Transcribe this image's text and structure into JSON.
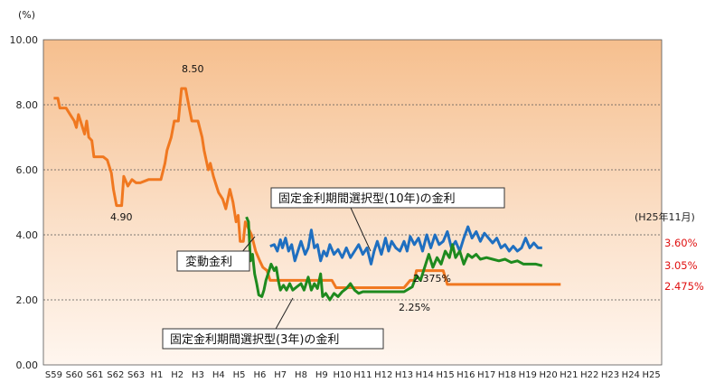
{
  "chart_data": {
    "type": "line",
    "y_unit": "(%)",
    "ylim": [
      0,
      10
    ],
    "y_ticks": [
      "0.00",
      "2.00",
      "4.00",
      "6.00",
      "8.00",
      "10.00"
    ],
    "categories": [
      "S59",
      "S60",
      "S61",
      "S62",
      "S63",
      "H1",
      "H2",
      "H3",
      "H4",
      "H5",
      "H6",
      "H7",
      "H8",
      "H9",
      "H10",
      "H11",
      "H12",
      "H13",
      "H14",
      "H15",
      "H16",
      "H17",
      "H18",
      "H19",
      "H20",
      "H21",
      "H22",
      "H23",
      "H24",
      "H25"
    ],
    "grid": true,
    "series": [
      {
        "name": "変動金利",
        "color": "#f07820",
        "points": [
          [
            0,
            8.2
          ],
          [
            0.2,
            8.2
          ],
          [
            0.3,
            7.9
          ],
          [
            0.6,
            7.9
          ],
          [
            0.8,
            7.7
          ],
          [
            1.0,
            7.5
          ],
          [
            1.1,
            7.3
          ],
          [
            1.2,
            7.7
          ],
          [
            1.35,
            7.4
          ],
          [
            1.5,
            7.1
          ],
          [
            1.6,
            7.5
          ],
          [
            1.7,
            7.0
          ],
          [
            1.85,
            6.9
          ],
          [
            1.95,
            6.4
          ],
          [
            2.4,
            6.4
          ],
          [
            2.6,
            6.3
          ],
          [
            2.8,
            5.9
          ],
          [
            2.9,
            5.4
          ],
          [
            3.05,
            4.9
          ],
          [
            3.3,
            4.9
          ],
          [
            3.4,
            5.8
          ],
          [
            3.6,
            5.5
          ],
          [
            3.8,
            5.7
          ],
          [
            4.0,
            5.6
          ],
          [
            4.2,
            5.6
          ],
          [
            4.6,
            5.7
          ],
          [
            5.2,
            5.7
          ],
          [
            5.4,
            6.2
          ],
          [
            5.5,
            6.6
          ],
          [
            5.7,
            7.0
          ],
          [
            5.85,
            7.5
          ],
          [
            6.05,
            7.5
          ],
          [
            6.2,
            8.5
          ],
          [
            6.4,
            8.5
          ],
          [
            6.55,
            8.0
          ],
          [
            6.7,
            7.5
          ],
          [
            7.0,
            7.5
          ],
          [
            7.2,
            7.0
          ],
          [
            7.3,
            6.6
          ],
          [
            7.5,
            6.0
          ],
          [
            7.6,
            6.2
          ],
          [
            7.75,
            5.8
          ],
          [
            7.9,
            5.5
          ],
          [
            8.0,
            5.3
          ],
          [
            8.2,
            5.1
          ],
          [
            8.35,
            4.8
          ],
          [
            8.55,
            5.4
          ],
          [
            8.7,
            5.0
          ],
          [
            8.85,
            4.4
          ],
          [
            8.95,
            4.6
          ],
          [
            9.05,
            3.8
          ],
          [
            9.2,
            3.8
          ],
          [
            9.3,
            4.4
          ],
          [
            9.45,
            4.2
          ],
          [
            9.6,
            4.0
          ],
          [
            9.8,
            3.5
          ],
          [
            10.0,
            3.2
          ],
          [
            10.15,
            3.0
          ],
          [
            10.35,
            2.9
          ],
          [
            10.5,
            2.6
          ],
          [
            11.0,
            2.6
          ],
          [
            12.0,
            2.6
          ],
          [
            13.0,
            2.6
          ],
          [
            13.5,
            2.6
          ],
          [
            13.7,
            2.375
          ],
          [
            16.0,
            2.375
          ],
          [
            17.0,
            2.375
          ],
          [
            17.3,
            2.6
          ],
          [
            17.5,
            2.6
          ],
          [
            17.6,
            2.9
          ],
          [
            18.9,
            2.9
          ],
          [
            19.1,
            2.475
          ],
          [
            21.0,
            2.475
          ],
          [
            23.0,
            2.475
          ],
          [
            24.6,
            2.475
          ]
        ]
      },
      {
        "name": "固定金利期間選択型(10年)の金利",
        "color": "#1f6fc0",
        "points": [
          [
            10.5,
            3.65
          ],
          [
            10.7,
            3.7
          ],
          [
            10.85,
            3.5
          ],
          [
            11.0,
            3.85
          ],
          [
            11.1,
            3.6
          ],
          [
            11.25,
            3.9
          ],
          [
            11.4,
            3.5
          ],
          [
            11.55,
            3.7
          ],
          [
            11.7,
            3.2
          ],
          [
            11.85,
            3.5
          ],
          [
            12.0,
            3.8
          ],
          [
            12.2,
            3.4
          ],
          [
            12.35,
            3.6
          ],
          [
            12.5,
            4.15
          ],
          [
            12.65,
            3.6
          ],
          [
            12.8,
            3.7
          ],
          [
            12.95,
            3.2
          ],
          [
            13.1,
            3.5
          ],
          [
            13.25,
            3.35
          ],
          [
            13.4,
            3.7
          ],
          [
            13.6,
            3.4
          ],
          [
            13.8,
            3.55
          ],
          [
            14.0,
            3.3
          ],
          [
            14.2,
            3.6
          ],
          [
            14.4,
            3.3
          ],
          [
            14.6,
            3.5
          ],
          [
            14.8,
            3.7
          ],
          [
            15.0,
            3.4
          ],
          [
            15.2,
            3.6
          ],
          [
            15.4,
            3.1
          ],
          [
            15.55,
            3.5
          ],
          [
            15.7,
            3.8
          ],
          [
            15.9,
            3.4
          ],
          [
            16.1,
            3.9
          ],
          [
            16.25,
            3.5
          ],
          [
            16.4,
            3.8
          ],
          [
            16.6,
            3.6
          ],
          [
            16.8,
            3.5
          ],
          [
            17.0,
            3.8
          ],
          [
            17.15,
            3.5
          ],
          [
            17.3,
            3.95
          ],
          [
            17.5,
            3.7
          ],
          [
            17.7,
            3.9
          ],
          [
            17.9,
            3.5
          ],
          [
            18.1,
            4.0
          ],
          [
            18.3,
            3.6
          ],
          [
            18.5,
            4.0
          ],
          [
            18.7,
            3.7
          ],
          [
            18.9,
            3.8
          ],
          [
            19.1,
            4.1
          ],
          [
            19.3,
            3.6
          ],
          [
            19.5,
            3.8
          ],
          [
            19.7,
            3.5
          ],
          [
            19.9,
            3.9
          ],
          [
            20.1,
            4.25
          ],
          [
            20.3,
            3.9
          ],
          [
            20.5,
            4.1
          ],
          [
            20.7,
            3.8
          ],
          [
            20.9,
            4.05
          ],
          [
            21.1,
            3.9
          ],
          [
            21.3,
            3.75
          ],
          [
            21.5,
            3.9
          ],
          [
            21.7,
            3.6
          ],
          [
            21.9,
            3.7
          ],
          [
            22.1,
            3.5
          ],
          [
            22.3,
            3.65
          ],
          [
            22.5,
            3.5
          ],
          [
            22.7,
            3.6
          ],
          [
            22.9,
            3.9
          ],
          [
            23.1,
            3.6
          ],
          [
            23.3,
            3.75
          ],
          [
            23.5,
            3.6
          ],
          [
            23.7,
            3.6
          ]
        ]
      },
      {
        "name": "固定金利期間選択型(3年)の金利",
        "color": "#1e8a1e",
        "points": [
          [
            9.35,
            4.55
          ],
          [
            9.45,
            4.4
          ],
          [
            9.55,
            3.2
          ],
          [
            9.65,
            3.4
          ],
          [
            9.75,
            2.8
          ],
          [
            9.85,
            2.5
          ],
          [
            9.95,
            2.15
          ],
          [
            10.1,
            2.1
          ],
          [
            10.2,
            2.3
          ],
          [
            10.3,
            2.6
          ],
          [
            10.45,
            2.9
          ],
          [
            10.55,
            3.1
          ],
          [
            10.7,
            2.9
          ],
          [
            10.8,
            3.0
          ],
          [
            10.9,
            2.6
          ],
          [
            11.0,
            2.3
          ],
          [
            11.15,
            2.45
          ],
          [
            11.3,
            2.3
          ],
          [
            11.45,
            2.5
          ],
          [
            11.6,
            2.3
          ],
          [
            11.8,
            2.4
          ],
          [
            12.0,
            2.5
          ],
          [
            12.15,
            2.3
          ],
          [
            12.35,
            2.7
          ],
          [
            12.5,
            2.3
          ],
          [
            12.65,
            2.5
          ],
          [
            12.8,
            2.35
          ],
          [
            12.95,
            2.8
          ],
          [
            13.05,
            2.1
          ],
          [
            13.2,
            2.2
          ],
          [
            13.4,
            2.0
          ],
          [
            13.6,
            2.2
          ],
          [
            13.8,
            2.1
          ],
          [
            14.0,
            2.25
          ],
          [
            14.2,
            2.35
          ],
          [
            14.4,
            2.5
          ],
          [
            14.6,
            2.3
          ],
          [
            14.8,
            2.2
          ],
          [
            15.0,
            2.25
          ],
          [
            16.0,
            2.25
          ],
          [
            17.0,
            2.25
          ],
          [
            17.4,
            2.4
          ],
          [
            17.6,
            2.75
          ],
          [
            17.8,
            2.6
          ],
          [
            18.0,
            3.0
          ],
          [
            18.2,
            3.4
          ],
          [
            18.4,
            3.0
          ],
          [
            18.6,
            3.3
          ],
          [
            18.8,
            3.1
          ],
          [
            19.0,
            3.5
          ],
          [
            19.2,
            3.3
          ],
          [
            19.35,
            3.7
          ],
          [
            19.5,
            3.3
          ],
          [
            19.7,
            3.5
          ],
          [
            19.9,
            3.1
          ],
          [
            20.1,
            3.4
          ],
          [
            20.3,
            3.3
          ],
          [
            20.5,
            3.4
          ],
          [
            20.7,
            3.25
          ],
          [
            21.0,
            3.3
          ],
          [
            21.3,
            3.25
          ],
          [
            21.6,
            3.2
          ],
          [
            21.9,
            3.25
          ],
          [
            22.2,
            3.15
          ],
          [
            22.5,
            3.2
          ],
          [
            22.8,
            3.1
          ],
          [
            23.1,
            3.1
          ],
          [
            23.4,
            3.1
          ],
          [
            23.7,
            3.05
          ]
        ]
      }
    ],
    "annotations": [
      {
        "text": "8.50",
        "x": 6.3,
        "y": 8.5
      },
      {
        "text": "4.90",
        "x": 3.2,
        "y": 4.9
      },
      {
        "text": "2.375%",
        "x": 15.0,
        "y": 2.375
      },
      {
        "text": "2.25%",
        "x": 14.6,
        "y": 2.25
      }
    ],
    "label_boxes": {
      "fixed10": "固定金利期間選択型(10年)の金利",
      "variable": "変動金利",
      "fixed3": "固定金利期間選択型(3年)の金利"
    },
    "end_labels": {
      "as_of": "(H25年11月)",
      "fixed10": "3.60%",
      "fixed3": "3.05%",
      "variable": "2.475%"
    }
  }
}
